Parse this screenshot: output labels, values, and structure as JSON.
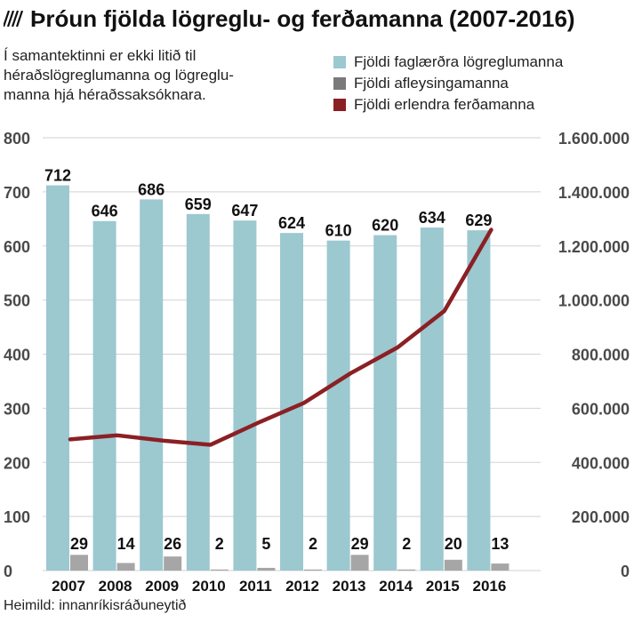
{
  "title": "Þróun fjölda lögreglu- og ferðamanna (2007-2016)",
  "subtitle_lines": [
    "Í samantektinni er ekki litið til",
    "héraðslögreglumanna og lögreglu-",
    "manna hjá héraðssaksóknara."
  ],
  "source": "Heimild: innanríkisráðuneytið",
  "icons": {
    "title": "diagonal-stripes-icon"
  },
  "colors": {
    "police": "#9cc8d0",
    "substitute": "#a6a6a6",
    "substitute_legend": "#7a7a7a",
    "tourists": "#8b2024",
    "axis_text": "#4a4a4a",
    "grid": "#d2d2d2"
  },
  "chart_data": {
    "type": "bar",
    "categories": [
      "2007",
      "2008",
      "2009",
      "2010",
      "2011",
      "2012",
      "2013",
      "2014",
      "2015",
      "2016"
    ],
    "series": [
      {
        "name": "Fjöldi faglærðra lögreglumanna",
        "type": "bar",
        "axis": "left",
        "values": [
          712,
          646,
          686,
          659,
          647,
          624,
          610,
          620,
          634,
          629
        ]
      },
      {
        "name": "Fjöldi afleysingamanna",
        "type": "bar",
        "axis": "left",
        "values": [
          29,
          14,
          26,
          2,
          5,
          2,
          29,
          2,
          20,
          13
        ]
      },
      {
        "name": "Fjöldi erlendra ferðamanna",
        "type": "line",
        "axis": "right",
        "values": [
          485000,
          500000,
          480000,
          465000,
          545000,
          620000,
          730000,
          825000,
          960000,
          1260000
        ]
      }
    ],
    "y_left": {
      "min": 0,
      "max": 800,
      "ticks": [
        "0",
        "100",
        "200",
        "300",
        "400",
        "500",
        "600",
        "700",
        "800"
      ]
    },
    "y_right": {
      "min": 0,
      "max": 1600000,
      "ticks": [
        "0",
        "200.000",
        "400.000",
        "600.000",
        "800.000",
        "1.000.000",
        "1.200.000",
        "1.400.000",
        "1.600.000"
      ]
    },
    "grid": true,
    "legend_position": "top-right"
  }
}
